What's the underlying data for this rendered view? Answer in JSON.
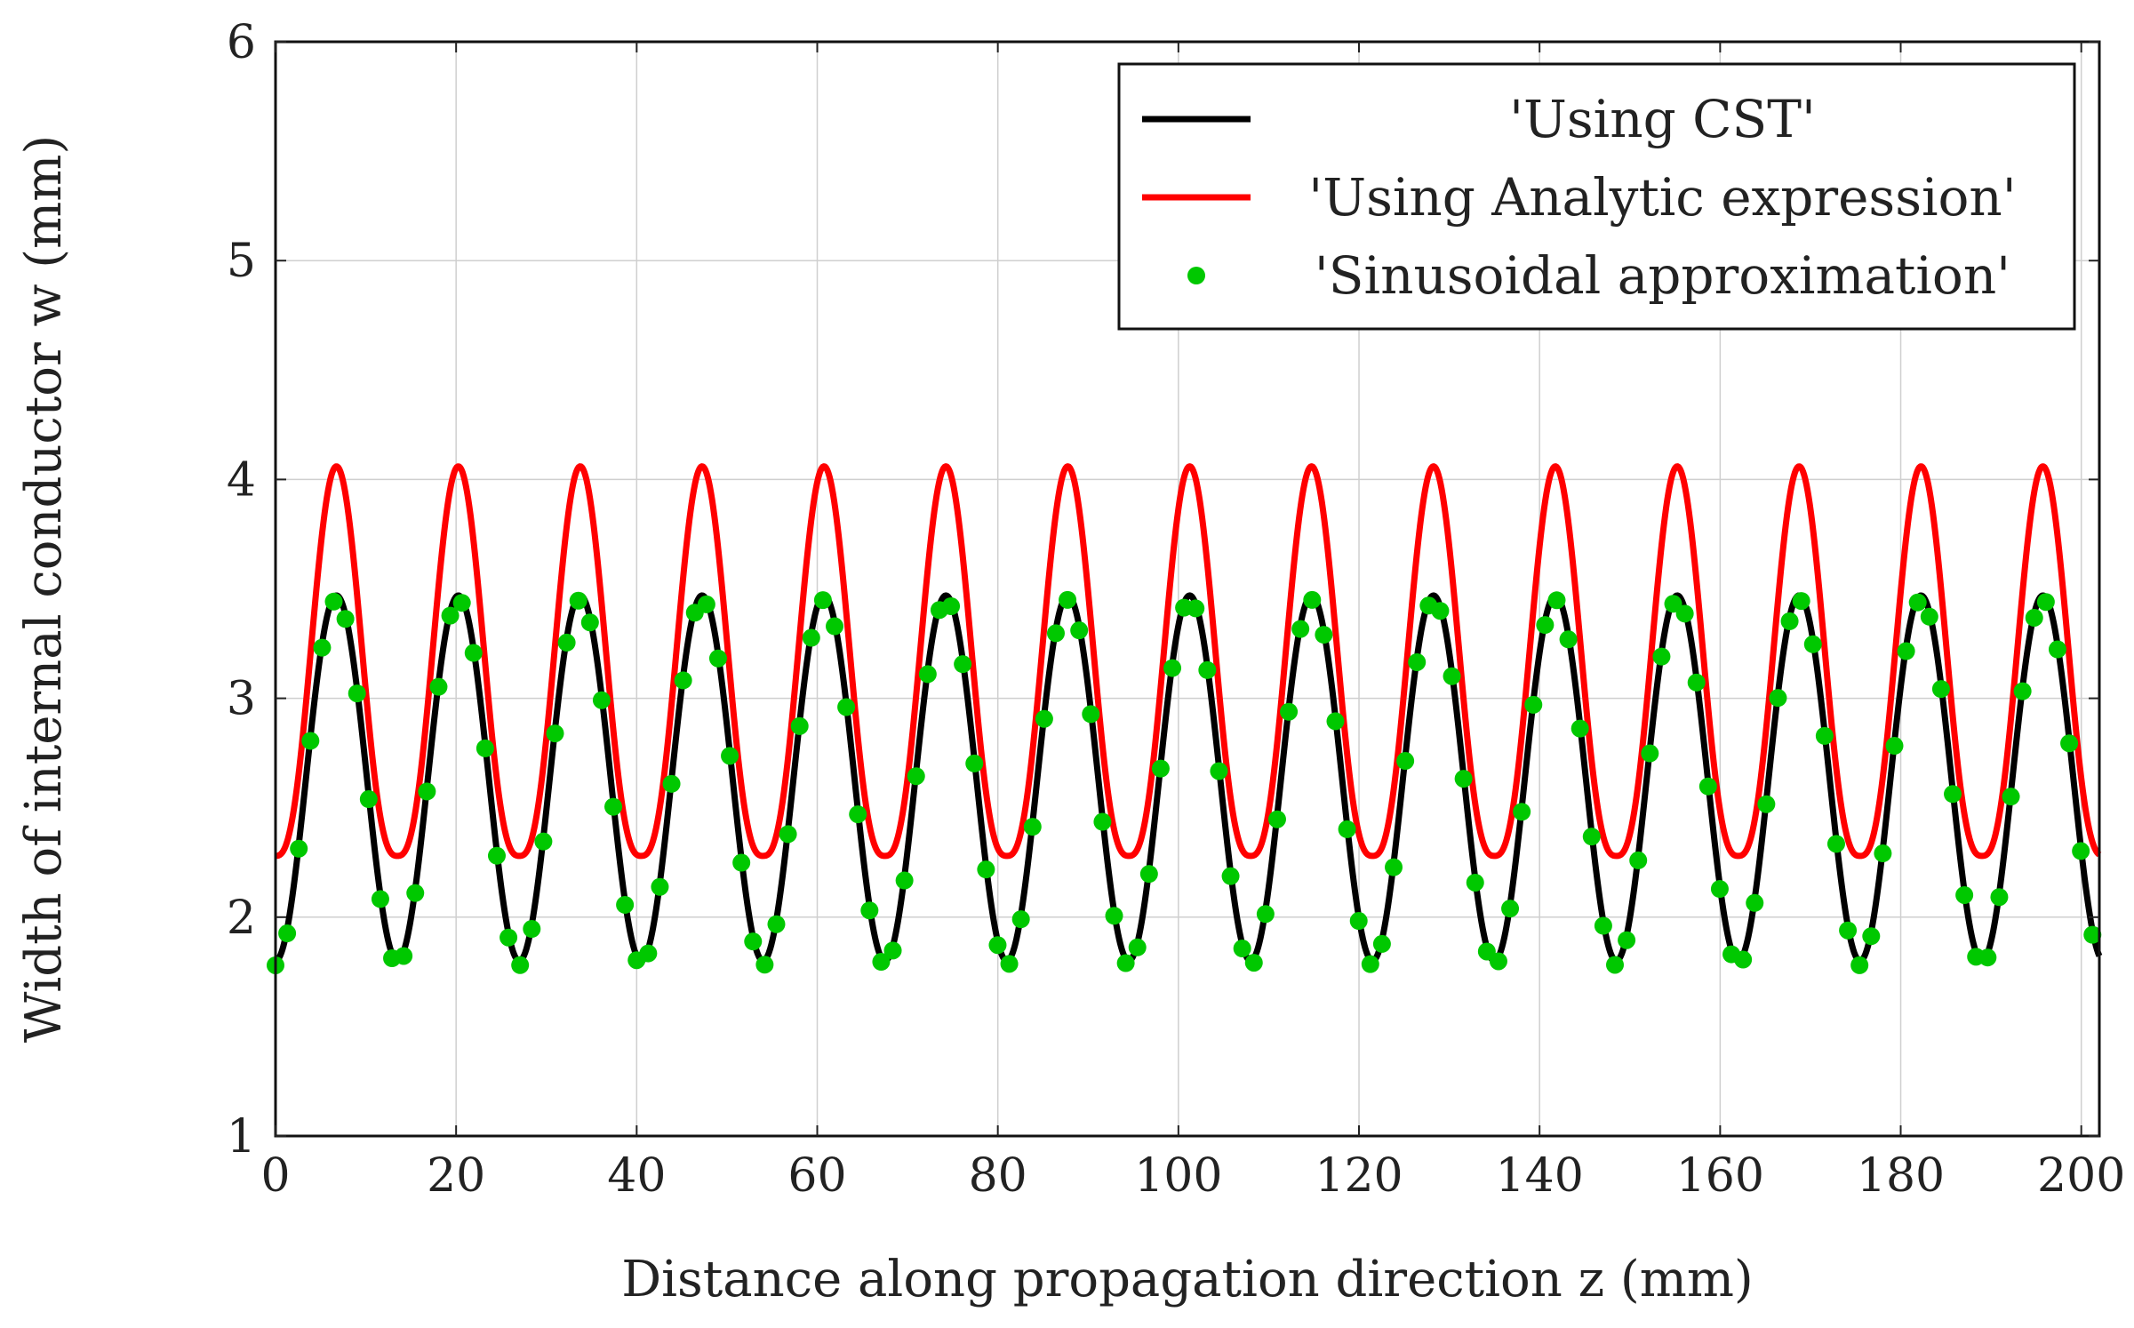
{
  "chart_data": {
    "type": "line",
    "title": "",
    "xlabel": "Distance along propagation direction z (mm)",
    "ylabel": "Width of internal conductor w (mm)",
    "xlim": [
      0,
      202
    ],
    "ylim": [
      1,
      6
    ],
    "xticks": [
      0,
      20,
      40,
      60,
      80,
      100,
      120,
      140,
      160,
      180,
      200
    ],
    "yticks": [
      1,
      2,
      3,
      4,
      5,
      6
    ],
    "xtick_labels": [
      "0",
      "20",
      "40",
      "60",
      "80",
      "100",
      "120",
      "140",
      "160",
      "180",
      "200"
    ],
    "ytick_labels": [
      "1",
      "2",
      "3",
      "4",
      "5",
      "6"
    ],
    "grid": true,
    "legend_position": "top-right",
    "series": [
      {
        "name": "'Using CST'",
        "style": "line",
        "color": "#000000",
        "period": 13.5,
        "min": 1.8,
        "max": 3.47,
        "x_start": 0,
        "x_end": 202,
        "phase_of_first_min": 0
      },
      {
        "name": "'Using Analytic expression'",
        "style": "line",
        "color": "#ff0000",
        "period": 13.5,
        "min": 2.28,
        "max": 4.06,
        "x_start": 0,
        "x_end": 202,
        "peak_sharpness": 1.35
      },
      {
        "name": "'Sinusoidal approximation'",
        "style": "markers",
        "color": "#00c800",
        "period": 13.5,
        "min": 1.78,
        "max": 3.45,
        "x_start": 0,
        "x_end": 202,
        "marker_spacing": 1.29
      }
    ]
  }
}
